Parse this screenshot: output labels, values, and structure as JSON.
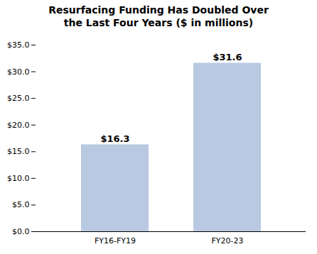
{
  "chart_data": {
    "type": "bar",
    "title": "Resurfacing Funding Has Doubled Over\nthe Last Four Years ($ in millions)",
    "categories": [
      "FY16-FY19",
      "FY20-23"
    ],
    "values": [
      16.3,
      31.6
    ],
    "value_labels": [
      "$16.3",
      "$31.6"
    ],
    "data_labels": true,
    "color": "#b8c9e1",
    "ylim": [
      0,
      35
    ],
    "yticks": [
      {
        "value": 0,
        "label": "$0.0"
      },
      {
        "value": 5,
        "label": "$5.0"
      },
      {
        "value": 10,
        "label": "$10.0"
      },
      {
        "value": 15,
        "label": "$15.0"
      },
      {
        "value": 20,
        "label": "$20.0"
      },
      {
        "value": 25,
        "label": "$25.0"
      },
      {
        "value": 30,
        "label": "$30.0"
      },
      {
        "value": 35,
        "label": "$35.0"
      }
    ],
    "grid": false
  }
}
